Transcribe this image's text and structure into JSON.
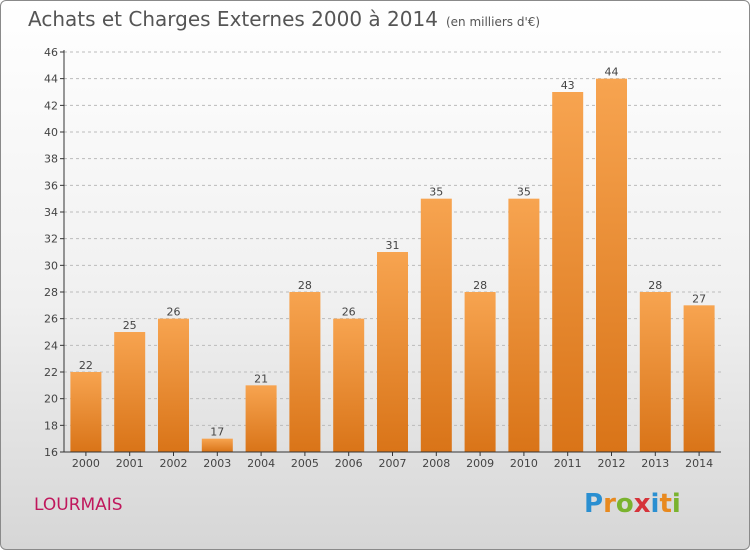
{
  "title": "Achats et Charges Externes 2000 à 2014",
  "title_unit": "(en milliers d'€)",
  "commune": "LOURMAIS",
  "logo": {
    "text": "Proxiti",
    "letters": [
      {
        "ch": "P",
        "color": "#2a8fd1"
      },
      {
        "ch": "r",
        "color": "#e8891e"
      },
      {
        "ch": "o",
        "color": "#7ab32e"
      },
      {
        "ch": "x",
        "color": "#d6333a"
      },
      {
        "ch": "i",
        "color": "#2a8fd1"
      },
      {
        "ch": "t",
        "color": "#e8891e"
      },
      {
        "ch": "i",
        "color": "#7ab32e"
      }
    ]
  },
  "colors": {
    "bar_top": "#f7a450",
    "bar_bottom": "#d97418",
    "axis": "#333333",
    "grid": "#bbbbbb"
  },
  "chart_data": {
    "type": "bar",
    "categories": [
      "2000",
      "2001",
      "2002",
      "2003",
      "2004",
      "2005",
      "2006",
      "2007",
      "2008",
      "2009",
      "2010",
      "2011",
      "2012",
      "2013",
      "2014"
    ],
    "values": [
      22,
      25,
      26,
      17,
      21,
      28,
      26,
      31,
      35,
      28,
      35,
      43,
      44,
      28,
      27
    ],
    "ylim": [
      16,
      46
    ],
    "yticks": [
      16,
      18,
      20,
      22,
      24,
      26,
      28,
      30,
      32,
      34,
      36,
      38,
      40,
      42,
      44,
      46
    ],
    "grid": "horizontal",
    "data_labels": true
  }
}
